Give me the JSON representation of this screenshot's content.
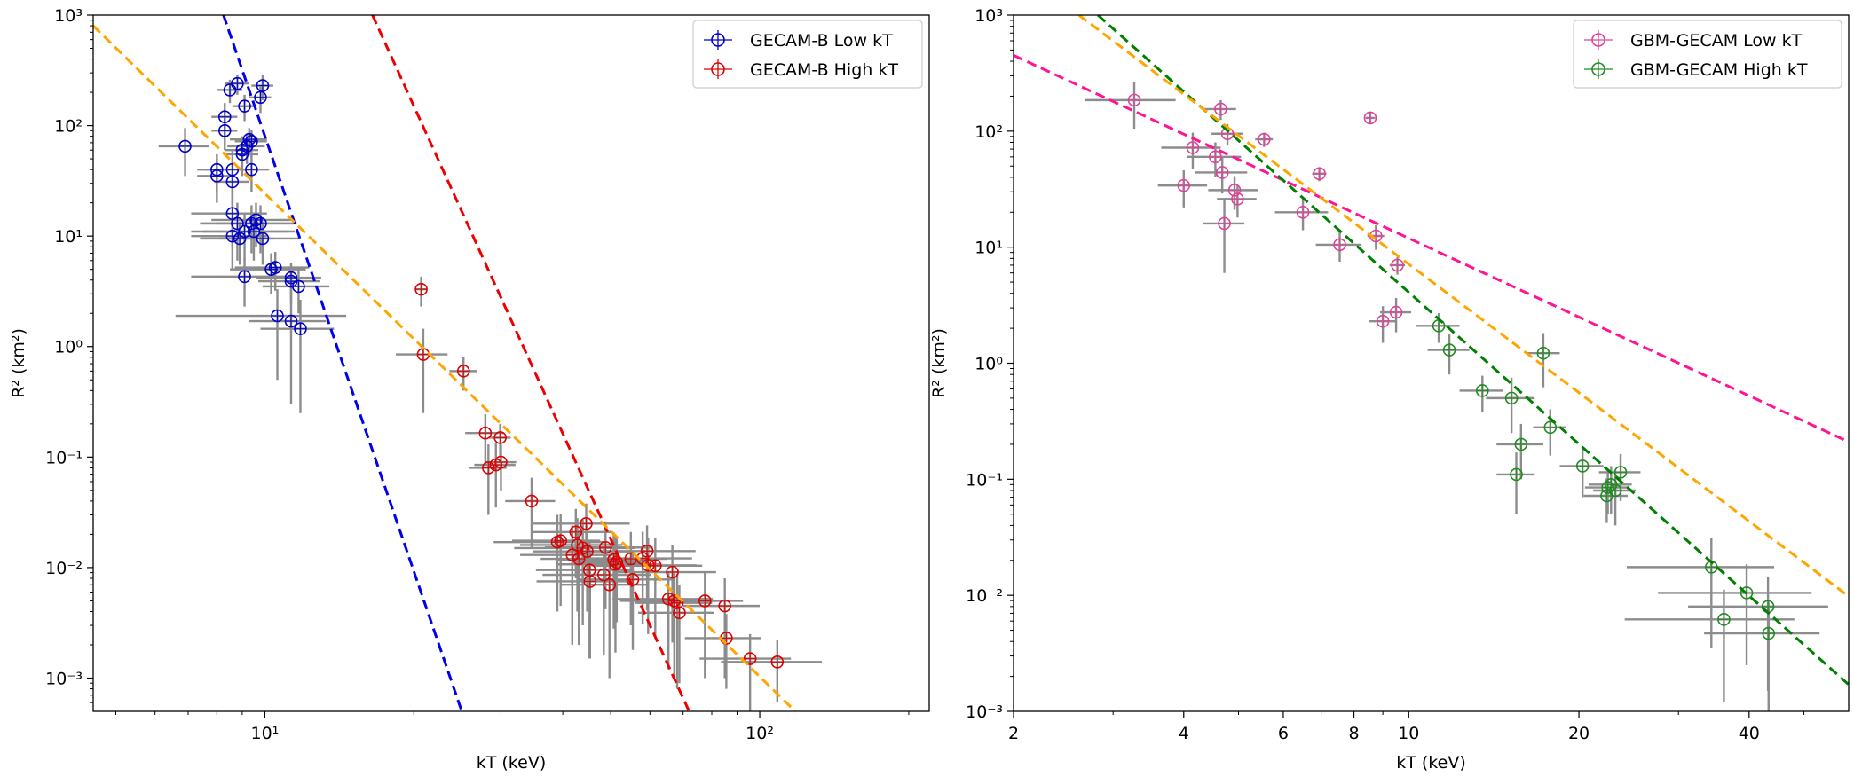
{
  "chart_data": [
    {
      "type": "scatter",
      "xscale": "log",
      "yscale": "log",
      "xlabel": "kT (keV)",
      "ylabel": "R² (km²)",
      "xlim": [
        4.5,
        220
      ],
      "ylim": [
        0.0005,
        1000
      ],
      "x_ticks": [
        {
          "value": 10,
          "label": "10¹"
        },
        {
          "value": 100,
          "label": "10²"
        }
      ],
      "y_ticks": [
        {
          "value": 0.001,
          "label": "10⁻³"
        },
        {
          "value": 0.01,
          "label": "10⁻²"
        },
        {
          "value": 0.1,
          "label": "10⁻¹"
        },
        {
          "value": 1,
          "label": "10⁰"
        },
        {
          "value": 10,
          "label": "10¹"
        },
        {
          "value": 100,
          "label": "10²"
        },
        {
          "value": 1000,
          "label": "10³"
        }
      ],
      "legend": {
        "placement": "top-right",
        "entries": [
          {
            "label": "GECAM-B Low kT",
            "color": "#0000cc"
          },
          {
            "label": "GECAM-B High kT",
            "color": "#dd0000"
          }
        ]
      },
      "fit_lines": [
        {
          "name": "Low kT fit",
          "color": "#0000ee",
          "points": [
            [
              8.25,
              1000
            ],
            [
              25,
              0.0005
            ]
          ]
        },
        {
          "name": "High kT fit",
          "color": "#ee0000",
          "points": [
            [
              16.5,
              1000
            ],
            [
              72,
              0.0005
            ]
          ]
        },
        {
          "name": "Combined fit",
          "color": "#ffa500",
          "points": [
            [
              4.5,
              800
            ],
            [
              118,
              0.0005
            ]
          ]
        }
      ],
      "series": [
        {
          "name": "GECAM-B Low kT",
          "color": "#0000cc",
          "points": [
            [
              6.9,
              65,
              0.8,
              30,
              30
            ],
            [
              8.0,
              35,
              0.7,
              15,
              15
            ],
            [
              8.0,
              40,
              0.7,
              15,
              15
            ],
            [
              8.3,
              120,
              0.5,
              40,
              40
            ],
            [
              8.3,
              90,
              0.5,
              30,
              30
            ],
            [
              8.5,
              210,
              0.5,
              50,
              50
            ],
            [
              8.8,
              240,
              0.5,
              50,
              50
            ],
            [
              8.6,
              40,
              1.0,
              20,
              20
            ],
            [
              8.6,
              31,
              0.7,
              12,
              12
            ],
            [
              8.6,
              16,
              1.5,
              8,
              8
            ],
            [
              8.6,
              10,
              1.5,
              5,
              5
            ],
            [
              8.8,
              13,
              1.4,
              7,
              7
            ],
            [
              8.9,
              9.5,
              1.5,
              4,
              4
            ],
            [
              9.0,
              55,
              0.7,
              20,
              20
            ],
            [
              9.0,
              60,
              0.7,
              20,
              20
            ],
            [
              9.1,
              150,
              0.5,
              40,
              40
            ],
            [
              9.1,
              11,
              2.0,
              5,
              5
            ],
            [
              9.2,
              65,
              0.8,
              20,
              20
            ],
            [
              9.3,
              75,
              0.8,
              20,
              20
            ],
            [
              9.4,
              72,
              0.7,
              20,
              20
            ],
            [
              9.4,
              40,
              0.8,
              15,
              15
            ],
            [
              9.4,
              13,
              2.0,
              6,
              6
            ],
            [
              9.5,
              11,
              2.0,
              5,
              5
            ],
            [
              9.6,
              14,
              1.8,
              6,
              6
            ],
            [
              9.8,
              180,
              0.5,
              50,
              50
            ],
            [
              9.9,
              230,
              0.5,
              60,
              60
            ],
            [
              9.8,
              13,
              1.8,
              6,
              6
            ],
            [
              9.9,
              9.5,
              1.8,
              4,
              4
            ],
            [
              9.1,
              4.3,
              2.0,
              2,
              2
            ],
            [
              10.3,
              5.0,
              1.8,
              2,
              2
            ],
            [
              10.5,
              5.2,
              1.8,
              2,
              2
            ],
            [
              11.3,
              4.2,
              1.7,
              1.5,
              1.5
            ],
            [
              11.3,
              3.9,
              1.6,
              1.5,
              1.5
            ],
            [
              11.7,
              3.5,
              1.8,
              1.5,
              1.5
            ],
            [
              10.6,
              1.9,
              4.0,
              1.4,
              1.4
            ],
            [
              11.3,
              1.7,
              2.0,
              1.4,
              1.4
            ],
            [
              11.8,
              1.45,
              2.0,
              1.2,
              1.2
            ]
          ]
        },
        {
          "name": "GECAM-B High kT",
          "color": "#dd0000",
          "points": [
            [
              20.7,
              3.3,
              0.6,
              1.0,
              1.0
            ],
            [
              20.9,
              0.85,
              2.5,
              0.6,
              0.6
            ],
            [
              25.2,
              0.6,
              1.6,
              0.2,
              0.2
            ],
            [
              27.9,
              0.165,
              2.5,
              0.08,
              0.08
            ],
            [
              28.3,
              0.08,
              2.5,
              0.05,
              0.05
            ],
            [
              29.3,
              0.085,
              2.8,
              0.05,
              0.05
            ],
            [
              29.9,
              0.15,
              1.5,
              0.05,
              0.05
            ],
            [
              30.0,
              0.09,
              2.2,
              0.04,
              0.04
            ],
            [
              34.6,
              0.04,
              4.0,
              0.025,
              0.025
            ],
            [
              39.0,
              0.017,
              10,
              0.013,
              0.013
            ],
            [
              39.6,
              0.0175,
              8,
              0.013,
              0.013
            ],
            [
              41.8,
              0.013,
              9,
              0.011,
              0.011
            ],
            [
              42.5,
              0.021,
              8,
              0.013,
              0.013
            ],
            [
              42.8,
              0.016,
              10,
              0.012,
              0.012
            ],
            [
              43.1,
              0.012,
              7,
              0.01,
              0.01
            ],
            [
              43.9,
              0.015,
              12,
              0.012,
              0.012
            ],
            [
              44.6,
              0.025,
              10,
              0.013,
              0.013
            ],
            [
              44.8,
              0.014,
              10,
              0.01,
              0.01
            ],
            [
              45.3,
              0.0095,
              10,
              0.008,
              0.008
            ],
            [
              45.4,
              0.0075,
              10,
              0.006,
              0.006
            ],
            [
              48.4,
              0.0086,
              12,
              0.007,
              0.007
            ],
            [
              48.8,
              0.0152,
              12,
              0.011,
              0.011
            ],
            [
              49.7,
              0.007,
              10,
              0.006,
              0.006
            ],
            [
              50.7,
              0.0118,
              12,
              0.009,
              0.009
            ],
            [
              51.1,
              0.0107,
              12,
              0.009,
              0.009
            ],
            [
              51.4,
              0.0112,
              8,
              0.008,
              0.008
            ],
            [
              54.9,
              0.012,
              10,
              0.009,
              0.009
            ],
            [
              55.4,
              0.0078,
              12,
              0.006,
              0.006
            ],
            [
              58.0,
              0.0121,
              15,
              0.009,
              0.009
            ],
            [
              59.2,
              0.0141,
              15,
              0.01,
              0.01
            ],
            [
              59.5,
              0.0105,
              15,
              0.008,
              0.008
            ],
            [
              61.5,
              0.0104,
              15,
              0.008,
              0.008
            ],
            [
              65.4,
              0.0052,
              15,
              0.004,
              0.004
            ],
            [
              66.6,
              0.0091,
              15,
              0.007,
              0.007
            ],
            [
              67.2,
              0.005,
              15,
              0.004,
              0.004
            ],
            [
              68.1,
              0.0048,
              12,
              0.004,
              0.004
            ],
            [
              68.8,
              0.0039,
              12,
              0.003,
              0.003
            ],
            [
              77.5,
              0.005,
              15,
              0.004,
              0.004
            ],
            [
              85.0,
              0.0045,
              15,
              0.0035,
              0.0035
            ],
            [
              85.6,
              0.0023,
              15,
              0.0015,
              0.0015
            ],
            [
              95.6,
              0.0015,
              20,
              0.001,
              0.001
            ],
            [
              108.5,
              0.0014,
              25,
              0.0008,
              0.0008
            ]
          ]
        }
      ]
    },
    {
      "type": "scatter",
      "xscale": "log",
      "yscale": "log",
      "xlabel": "kT (keV)",
      "ylabel": "R² (km²)",
      "xlim": [
        2,
        60
      ],
      "ylim": [
        0.001,
        1000
      ],
      "x_ticks": [
        {
          "value": 2,
          "label": "2"
        },
        {
          "value": 4,
          "label": "4"
        },
        {
          "value": 6,
          "label": "6"
        },
        {
          "value": 8,
          "label": "8"
        },
        {
          "value": 10,
          "label": "10"
        },
        {
          "value": 20,
          "label": "20"
        },
        {
          "value": 40,
          "label": "40"
        }
      ],
      "y_ticks": [
        {
          "value": 0.001,
          "label": "10⁻³"
        },
        {
          "value": 0.01,
          "label": "10⁻²"
        },
        {
          "value": 0.1,
          "label": "10⁻¹"
        },
        {
          "value": 1,
          "label": "10⁰"
        },
        {
          "value": 10,
          "label": "10¹"
        },
        {
          "value": 100,
          "label": "10²"
        },
        {
          "value": 1000,
          "label": "10³"
        }
      ],
      "legend": {
        "placement": "top-right",
        "entries": [
          {
            "label": "GBM-GECAM Low kT",
            "color": "#dd4499"
          },
          {
            "label": "GBM-GECAM High kT",
            "color": "#228b22"
          }
        ]
      },
      "fit_lines": [
        {
          "name": "Low kT fit",
          "color": "#ff1493",
          "points": [
            [
              2,
              450
            ],
            [
              60,
              0.21
            ]
          ]
        },
        {
          "name": "High kT fit",
          "color": "#008000",
          "points": [
            [
              2.82,
              1000
            ],
            [
              60,
              0.0017
            ]
          ]
        },
        {
          "name": "Combined fit",
          "color": "#ffa500",
          "points": [
            [
              2.61,
              1000
            ],
            [
              60,
              0.0098
            ]
          ]
        }
      ],
      "series": [
        {
          "name": "GBM-GECAM Low kT",
          "color": "#dd4499",
          "points": [
            [
              3.27,
              185,
              0.6,
              80,
              80
            ],
            [
              4.0,
              34,
              0.4,
              12,
              12
            ],
            [
              4.15,
              72,
              0.5,
              25,
              25
            ],
            [
              4.55,
              60,
              0.5,
              20,
              20
            ],
            [
              4.65,
              155,
              0.3,
              30,
              30
            ],
            [
              4.68,
              44,
              0.5,
              15,
              15
            ],
            [
              4.72,
              16,
              0.4,
              10,
              10
            ],
            [
              4.78,
              95,
              0.3,
              20,
              20
            ],
            [
              4.92,
              31,
              0.5,
              10,
              10
            ],
            [
              4.98,
              26,
              0.4,
              8,
              8
            ],
            [
              5.55,
              85,
              0.2,
              12,
              12
            ],
            [
              6.5,
              20,
              0.7,
              6,
              6
            ],
            [
              6.95,
              43,
              0.2,
              6,
              6
            ],
            [
              7.55,
              10.5,
              0.7,
              3,
              3
            ],
            [
              8.55,
              130,
              0.15,
              15,
              15
            ],
            [
              8.75,
              12.5,
              0.3,
              3,
              3
            ],
            [
              9.0,
              2.3,
              0.5,
              0.8,
              0.8
            ],
            [
              9.5,
              2.75,
              0.6,
              0.9,
              0.9
            ],
            [
              9.55,
              7.0,
              0.3,
              1.2,
              1.2
            ]
          ]
        },
        {
          "name": "GBM-GECAM High kT",
          "color": "#228b22",
          "points": [
            [
              11.3,
              2.1,
              1.0,
              0.6,
              0.6
            ],
            [
              11.8,
              1.3,
              1.0,
              0.5,
              0.5
            ],
            [
              13.5,
              0.58,
              1.2,
              0.2,
              0.2
            ],
            [
              15.2,
              0.5,
              1.5,
              0.25,
              0.25
            ],
            [
              15.5,
              0.11,
              1.2,
              0.06,
              0.06
            ],
            [
              15.8,
              0.2,
              1.5,
              0.1,
              0.1
            ],
            [
              17.3,
              1.22,
              1.2,
              0.6,
              0.6
            ],
            [
              17.8,
              0.28,
              1.2,
              0.12,
              0.12
            ],
            [
              20.3,
              0.13,
              1.8,
              0.06,
              0.06
            ],
            [
              22.4,
              0.072,
              2.0,
              0.03,
              0.03
            ],
            [
              22.5,
              0.085,
              2.0,
              0.035,
              0.035
            ],
            [
              22.8,
              0.09,
              2.0,
              0.04,
              0.04
            ],
            [
              23.2,
              0.08,
              2.0,
              0.04,
              0.04
            ],
            [
              23.7,
              0.115,
              2.0,
              0.05,
              0.05
            ],
            [
              34.3,
              0.0175,
              10,
              0.014,
              0.014
            ],
            [
              36.1,
              0.0062,
              12,
              0.005,
              0.005
            ],
            [
              39.6,
              0.0105,
              12,
              0.008,
              0.008
            ],
            [
              43.2,
              0.008,
              12,
              0.0065,
              0.0065
            ],
            [
              43.3,
              0.0047,
              10,
              0.004,
              0.004
            ]
          ]
        }
      ]
    }
  ]
}
